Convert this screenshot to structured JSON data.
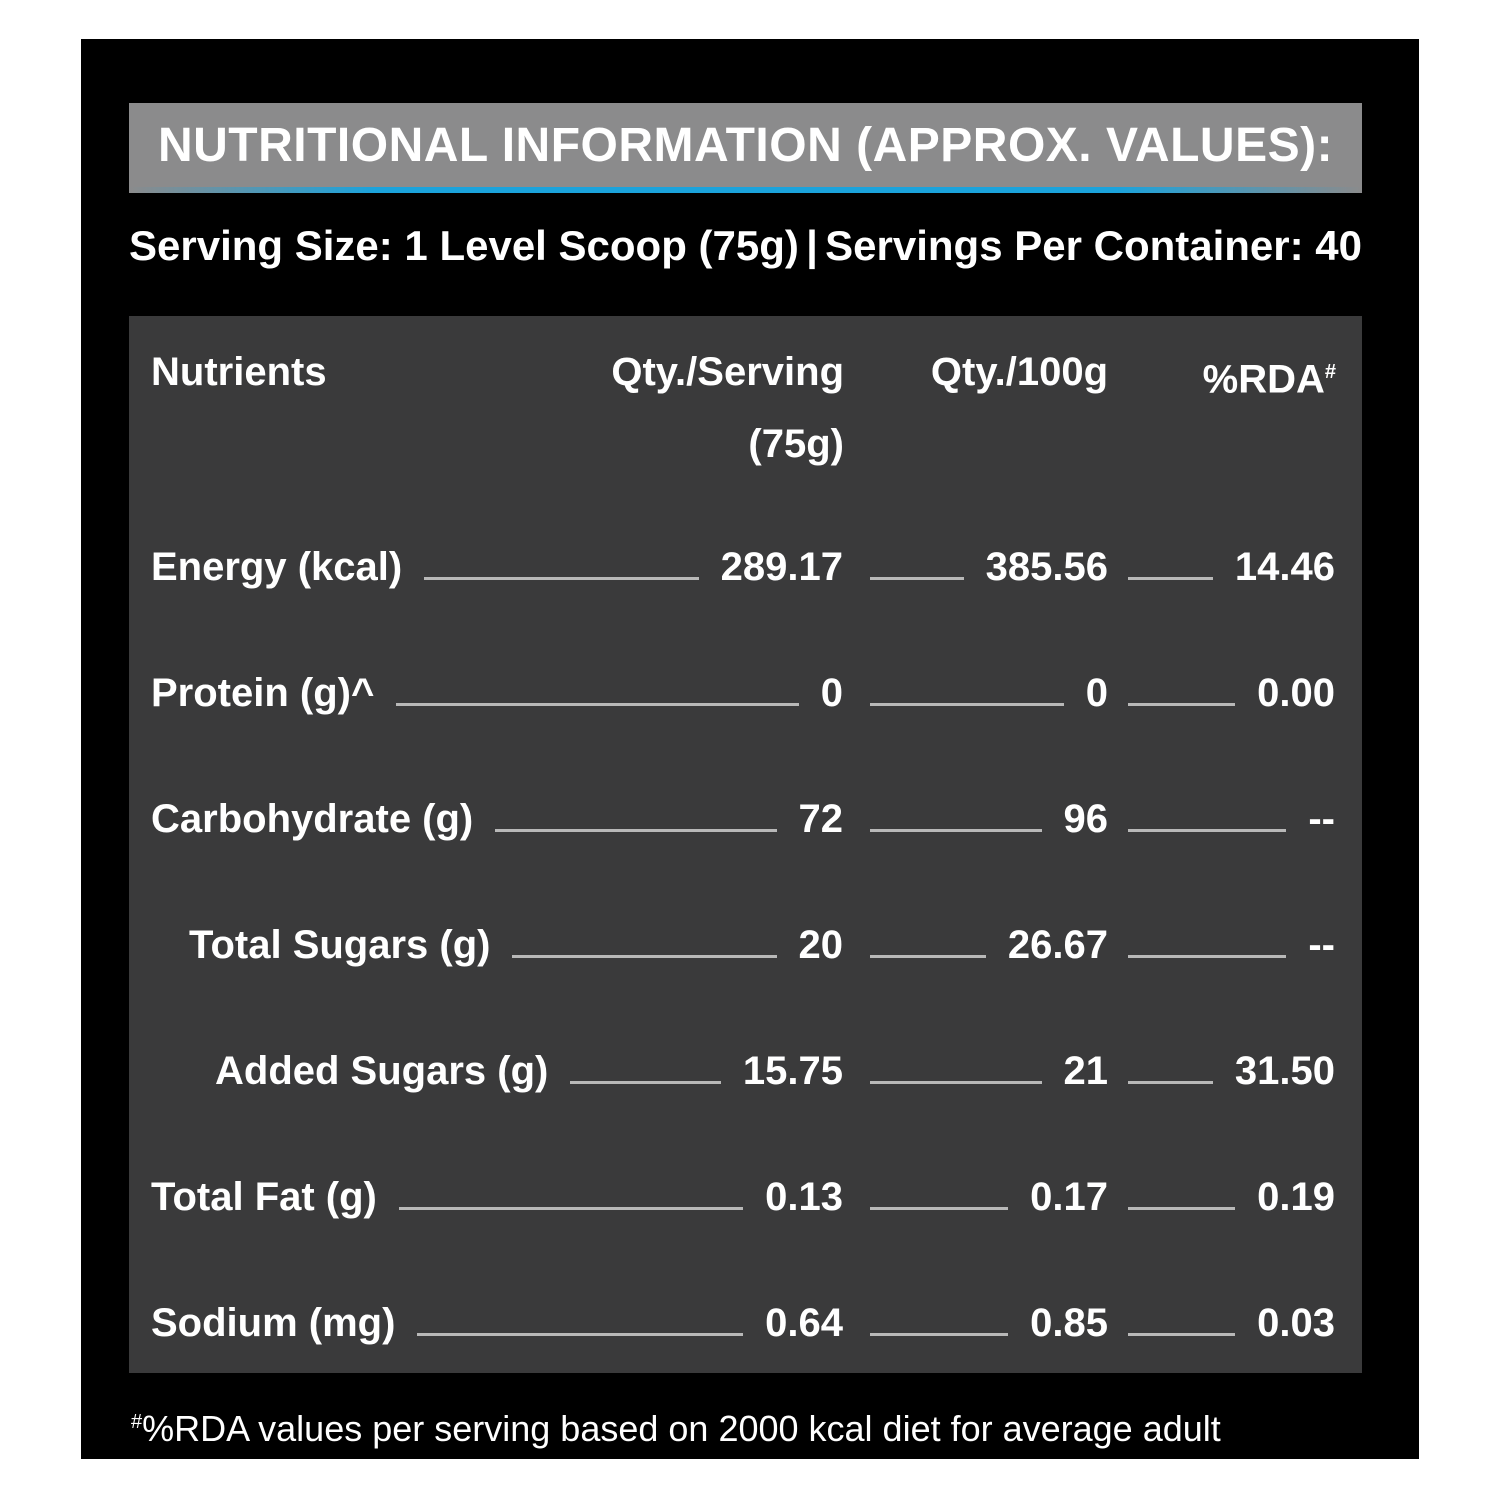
{
  "title": "NUTRITIONAL INFORMATION (APPROX. VALUES):",
  "serving_size": "Serving Size: 1 Level Scoop (75g)",
  "separator": "|",
  "servings_per_container": "Servings Per Container: 40",
  "columns": {
    "nutrients": "Nutrients",
    "per_serving": "Qty./Serving",
    "per_serving_sub": "(75g)",
    "per_100g": "Qty./100g",
    "rda": "%RDA",
    "rda_mark": "#"
  },
  "rows": [
    {
      "name": "Energy (kcal)",
      "serving": "289.17",
      "per100": "385.56",
      "rda": "14.46"
    },
    {
      "name": "Protein (g)^",
      "serving": "0",
      "per100": "0",
      "rda": "0.00"
    },
    {
      "name": "Carbohydrate (g)",
      "serving": "72",
      "per100": "96",
      "rda": "--"
    },
    {
      "name": "Total Sugars (g)",
      "serving": "20",
      "per100": "26.67",
      "rda": "--"
    },
    {
      "name": "Added Sugars (g)",
      "serving": "15.75",
      "per100": "21",
      "rda": "31.50"
    },
    {
      "name": "Total Fat (g)",
      "serving": "0.13",
      "per100": "0.17",
      "rda": "0.19"
    },
    {
      "name": "Sodium (mg)",
      "serving": "0.64",
      "per100": "0.85",
      "rda": "0.03"
    }
  ],
  "footnote_mark": "#",
  "footnote": "%RDA values per serving based on 2000 kcal diet for average adult",
  "colors": {
    "background": "#000000",
    "title_bar": "#8b8b8c",
    "accent": "#1ba3dc",
    "table": "#3a3a3b"
  }
}
